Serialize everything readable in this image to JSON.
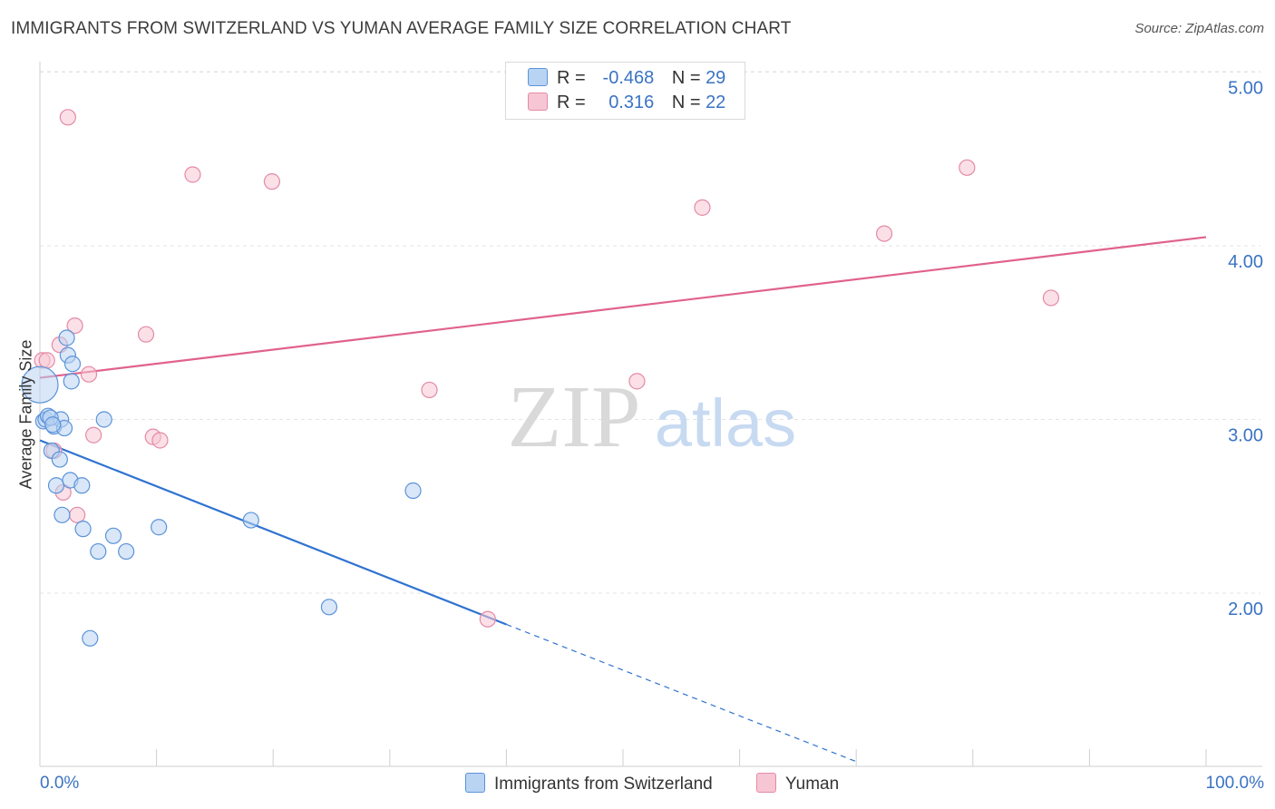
{
  "header": {
    "title": "IMMIGRANTS FROM SWITZERLAND VS YUMAN AVERAGE FAMILY SIZE CORRELATION CHART",
    "source": "Source: ZipAtlas.com"
  },
  "legend": {
    "row1": {
      "r_label": "R =",
      "r_value": "-0.468",
      "n_label": "N =",
      "n_value": "29"
    },
    "row2": {
      "r_label": "R =",
      "r_value": "0.316",
      "n_label": "N =",
      "n_value": "22"
    }
  },
  "bottom_legend": {
    "series1": "Immigrants from Switzerland",
    "series2": "Yuman"
  },
  "watermark": {
    "zip": "ZIP",
    "atlas": "atlas"
  },
  "colors": {
    "blue_fill": "#b9d3f3",
    "blue_stroke": "#5b93d9",
    "blue_line": "#2f73d0",
    "pink_fill": "#f7c6d4",
    "pink_stroke": "#e48aa6",
    "pink_line": "#e0628c",
    "tick_label": "#3a73c4"
  },
  "chart_data": {
    "type": "scatter",
    "title": "IMMIGRANTS FROM SWITZERLAND VS YUMAN AVERAGE FAMILY SIZE CORRELATION CHART",
    "xlabel": "",
    "ylabel": "Average Family Size",
    "xlim": [
      0,
      100
    ],
    "ylim": [
      1.0,
      5.15
    ],
    "x_tick_labels": [
      "0.0%",
      "100.0%"
    ],
    "y_ticks": [
      2.0,
      3.0,
      4.0,
      5.0
    ],
    "y_tick_labels": [
      "2.00",
      "3.00",
      "4.00",
      "5.00"
    ],
    "grid": "horizontal dashed",
    "legend_position": "top-center",
    "series": [
      {
        "name": "Immigrants from Switzerland",
        "color": "#5b93d9",
        "r": -0.468,
        "n": 29,
        "points": [
          [
            0.0,
            3.2
          ],
          [
            0.3,
            2.99
          ],
          [
            0.5,
            3.0
          ],
          [
            0.7,
            3.02
          ],
          [
            1.0,
            2.82
          ],
          [
            1.2,
            2.96
          ],
          [
            1.4,
            2.62
          ],
          [
            1.7,
            2.77
          ],
          [
            1.8,
            3.0
          ],
          [
            1.9,
            2.45
          ],
          [
            2.1,
            2.95
          ],
          [
            2.3,
            3.47
          ],
          [
            2.4,
            3.37
          ],
          [
            2.6,
            2.65
          ],
          [
            2.7,
            3.22
          ],
          [
            2.8,
            3.32
          ],
          [
            3.6,
            2.62
          ],
          [
            3.7,
            2.37
          ],
          [
            4.3,
            1.74
          ],
          [
            5.0,
            2.24
          ],
          [
            5.5,
            3.0
          ],
          [
            6.3,
            2.33
          ],
          [
            7.4,
            2.24
          ],
          [
            10.2,
            2.38
          ],
          [
            18.1,
            2.42
          ],
          [
            24.8,
            1.92
          ],
          [
            32.0,
            2.59
          ],
          [
            0.9,
            3.01
          ],
          [
            1.1,
            2.97
          ]
        ],
        "trend": {
          "x": [
            0,
            40
          ],
          "y": [
            2.88,
            1.82
          ]
        },
        "trend_extension": {
          "x": [
            40,
            70
          ],
          "y": [
            1.82,
            1.03
          ]
        }
      },
      {
        "name": "Yuman",
        "color": "#e48aa6",
        "r": 0.316,
        "n": 22,
        "points": [
          [
            0.2,
            3.34
          ],
          [
            0.6,
            3.34
          ],
          [
            1.2,
            2.82
          ],
          [
            1.7,
            3.43
          ],
          [
            2.0,
            2.58
          ],
          [
            2.4,
            4.74
          ],
          [
            3.0,
            3.54
          ],
          [
            3.2,
            2.45
          ],
          [
            4.2,
            3.26
          ],
          [
            4.6,
            2.91
          ],
          [
            9.1,
            3.49
          ],
          [
            9.7,
            2.9
          ],
          [
            10.3,
            2.88
          ],
          [
            13.1,
            4.41
          ],
          [
            19.9,
            4.37
          ],
          [
            33.4,
            3.17
          ],
          [
            38.4,
            1.85
          ],
          [
            51.2,
            3.22
          ],
          [
            56.8,
            4.22
          ],
          [
            72.4,
            4.07
          ],
          [
            79.5,
            4.45
          ],
          [
            86.7,
            3.7
          ]
        ],
        "trend": {
          "x": [
            0,
            100
          ],
          "y": [
            3.24,
            4.05
          ]
        }
      }
    ]
  }
}
